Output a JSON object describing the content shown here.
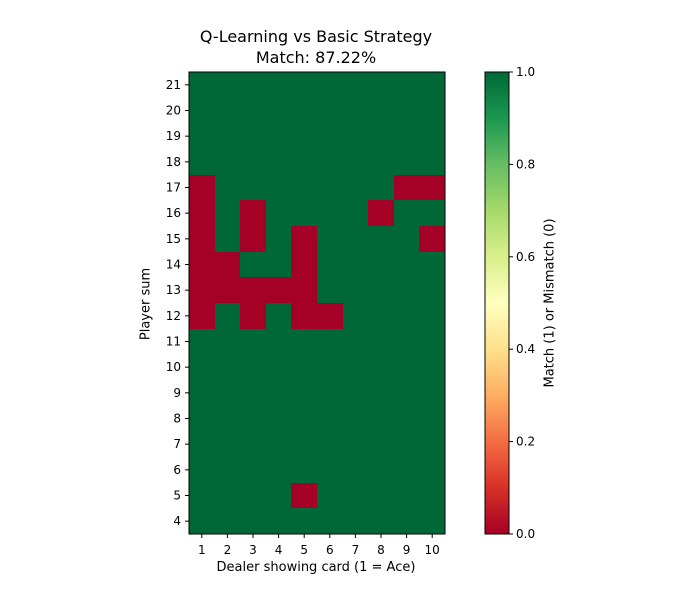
{
  "chart_data": {
    "type": "heatmap",
    "title": "Q-Learning vs Basic Strategy",
    "subtitle": "Match: 87.22%",
    "xlabel": "Dealer showing card (1 = Ace)",
    "ylabel": "Player sum",
    "x": [
      1,
      2,
      3,
      4,
      5,
      6,
      7,
      8,
      9,
      10
    ],
    "y": [
      4,
      5,
      6,
      7,
      8,
      9,
      10,
      11,
      12,
      13,
      14,
      15,
      16,
      17,
      18,
      19,
      20,
      21
    ],
    "values": [
      [
        1,
        1,
        1,
        1,
        1,
        1,
        1,
        1,
        1,
        1
      ],
      [
        1,
        1,
        1,
        1,
        0,
        1,
        1,
        1,
        1,
        1
      ],
      [
        1,
        1,
        1,
        1,
        1,
        1,
        1,
        1,
        1,
        1
      ],
      [
        1,
        1,
        1,
        1,
        1,
        1,
        1,
        1,
        1,
        1
      ],
      [
        1,
        1,
        1,
        1,
        1,
        1,
        1,
        1,
        1,
        1
      ],
      [
        1,
        1,
        1,
        1,
        1,
        1,
        1,
        1,
        1,
        1
      ],
      [
        1,
        1,
        1,
        1,
        1,
        1,
        1,
        1,
        1,
        1
      ],
      [
        1,
        1,
        1,
        1,
        1,
        1,
        1,
        1,
        1,
        1
      ],
      [
        0,
        1,
        0,
        1,
        0,
        0,
        1,
        1,
        1,
        1
      ],
      [
        0,
        0,
        0,
        0,
        0,
        1,
        1,
        1,
        1,
        1
      ],
      [
        0,
        0,
        1,
        1,
        0,
        1,
        1,
        1,
        1,
        1
      ],
      [
        0,
        1,
        0,
        1,
        0,
        1,
        1,
        1,
        1,
        0
      ],
      [
        0,
        1,
        0,
        1,
        1,
        1,
        1,
        0,
        1,
        1
      ],
      [
        0,
        1,
        1,
        1,
        1,
        1,
        1,
        1,
        0,
        0
      ],
      [
        1,
        1,
        1,
        1,
        1,
        1,
        1,
        1,
        1,
        1
      ],
      [
        1,
        1,
        1,
        1,
        1,
        1,
        1,
        1,
        1,
        1
      ],
      [
        1,
        1,
        1,
        1,
        1,
        1,
        1,
        1,
        1,
        1
      ],
      [
        1,
        1,
        1,
        1,
        1,
        1,
        1,
        1,
        1,
        1
      ]
    ],
    "colorbar": {
      "label": "Match (1) or Mismatch (0)",
      "range": [
        0.0,
        1.0
      ],
      "ticks": [
        "0.0",
        "0.2",
        "0.4",
        "0.6",
        "0.8",
        "1.0"
      ],
      "colormap": "RdYlGn"
    },
    "colors": {
      "match": "#006837",
      "mismatch": "#a50026"
    },
    "grid": false
  }
}
